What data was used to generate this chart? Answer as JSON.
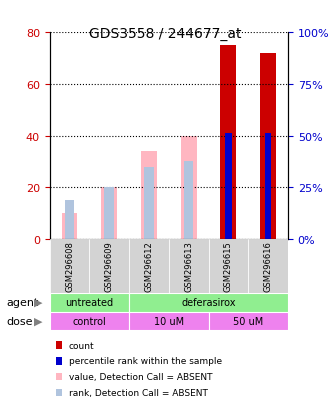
{
  "title": "GDS3558 / 244677_at",
  "samples": [
    "GSM296608",
    "GSM296609",
    "GSM296612",
    "GSM296613",
    "GSM296615",
    "GSM296616"
  ],
  "count_values": [
    0,
    0,
    0,
    0,
    75,
    72
  ],
  "percentile_rank": [
    0,
    0,
    0,
    0,
    41,
    41
  ],
  "value_absent": [
    10,
    20,
    34,
    40,
    0,
    0
  ],
  "rank_absent": [
    15,
    20,
    28,
    30,
    0,
    0
  ],
  "ylim_left": [
    0,
    80
  ],
  "ylim_right": [
    0,
    100
  ],
  "yticks_left": [
    0,
    20,
    40,
    60,
    80
  ],
  "yticks_right": [
    0,
    25,
    50,
    75,
    100
  ],
  "ytick_labels_left": [
    "0",
    "20",
    "40",
    "60",
    "80"
  ],
  "ytick_labels_right": [
    "0%",
    "25%",
    "50%",
    "75%",
    "100%"
  ],
  "agent_labels": [
    [
      "untreated",
      0,
      2
    ],
    [
      "deferasirox",
      2,
      6
    ]
  ],
  "dose_labels": [
    [
      "control",
      0,
      2
    ],
    [
      "10 uM",
      2,
      4
    ],
    [
      "50 uM",
      4,
      6
    ]
  ],
  "agent_color": "#90EE90",
  "dose_color": "#EE82EE",
  "bar_color_count": "#CC0000",
  "bar_color_rank": "#0000CC",
  "bar_color_value_absent": "#FFB6C1",
  "bar_color_rank_absent": "#B0C4DE",
  "grid_color": "#000000",
  "xlabel_color_left": "#CC0000",
  "xlabel_color_right": "#0000CC",
  "bar_width": 0.4
}
